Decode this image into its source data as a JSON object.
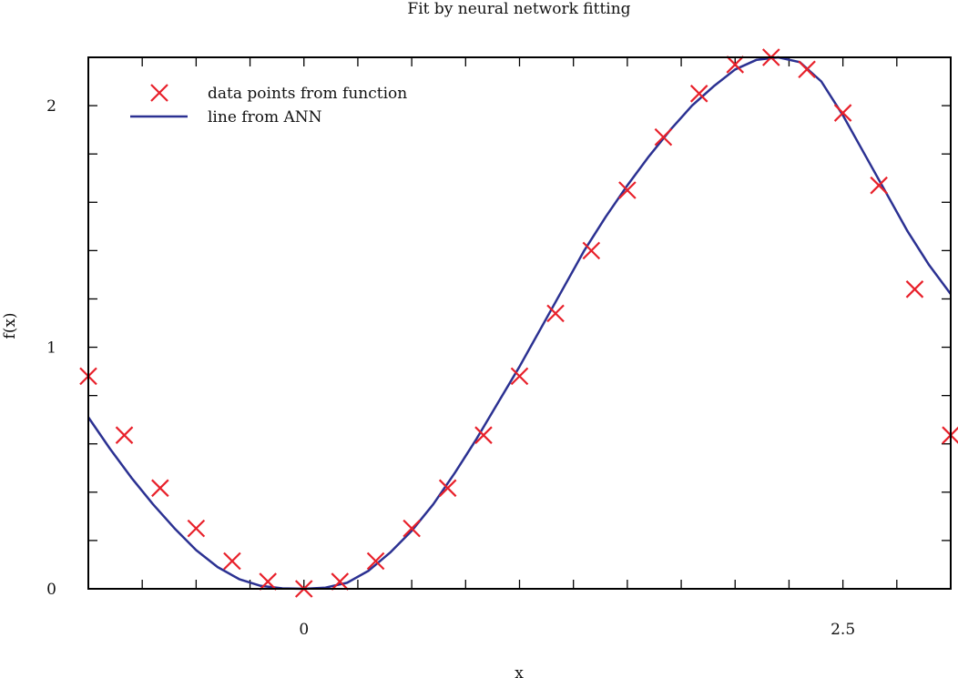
{
  "chart_data": {
    "type": "scatter",
    "title": "Fit by neural network fitting",
    "xlabel": "x",
    "ylabel": "f(x)",
    "xlim": [
      -1.0,
      3.0
    ],
    "ylim": [
      0,
      2.2
    ],
    "x_ticks": [
      0,
      2.5
    ],
    "x_tick_labels": [
      "0",
      "2.5"
    ],
    "y_ticks": [
      0,
      1,
      2
    ],
    "y_tick_labels": [
      "0",
      "1",
      "2"
    ],
    "grid": false,
    "legend_position": "top-left",
    "series": [
      {
        "name": "data points from function",
        "kind": "markers",
        "marker": "x",
        "color": "#e8202a",
        "points": [
          [
            -1.0,
            0.88
          ],
          [
            -0.833,
            0.636
          ],
          [
            -0.667,
            0.417
          ],
          [
            -0.5,
            0.25
          ],
          [
            -0.333,
            0.115
          ],
          [
            -0.167,
            0.03
          ],
          [
            0.0,
            0.0
          ],
          [
            0.167,
            0.03
          ],
          [
            0.333,
            0.115
          ],
          [
            0.5,
            0.25
          ],
          [
            0.667,
            0.417
          ],
          [
            0.833,
            0.636
          ],
          [
            1.0,
            0.88
          ],
          [
            1.167,
            1.14
          ],
          [
            1.333,
            1.4
          ],
          [
            1.5,
            1.65
          ],
          [
            1.667,
            1.87
          ],
          [
            1.833,
            2.05
          ],
          [
            2.0,
            2.17
          ],
          [
            2.167,
            2.2
          ],
          [
            2.333,
            2.15
          ],
          [
            2.5,
            1.97
          ],
          [
            2.667,
            1.67
          ],
          [
            2.833,
            1.24
          ],
          [
            3.0,
            0.636
          ]
        ]
      },
      {
        "name": "line from ANN",
        "kind": "line",
        "color": "#2b3192",
        "points": [
          [
            -1.0,
            0.71
          ],
          [
            -0.9,
            0.58
          ],
          [
            -0.8,
            0.46
          ],
          [
            -0.7,
            0.35
          ],
          [
            -0.6,
            0.25
          ],
          [
            -0.5,
            0.16
          ],
          [
            -0.4,
            0.09
          ],
          [
            -0.3,
            0.04
          ],
          [
            -0.2,
            0.012
          ],
          [
            -0.1,
            0.002
          ],
          [
            0.0,
            0.0
          ],
          [
            0.1,
            0.005
          ],
          [
            0.2,
            0.025
          ],
          [
            0.3,
            0.075
          ],
          [
            0.4,
            0.15
          ],
          [
            0.5,
            0.24
          ],
          [
            0.6,
            0.35
          ],
          [
            0.7,
            0.48
          ],
          [
            0.8,
            0.62
          ],
          [
            0.9,
            0.77
          ],
          [
            1.0,
            0.92
          ],
          [
            1.1,
            1.08
          ],
          [
            1.2,
            1.24
          ],
          [
            1.3,
            1.4
          ],
          [
            1.4,
            1.54
          ],
          [
            1.5,
            1.67
          ],
          [
            1.6,
            1.79
          ],
          [
            1.7,
            1.9
          ],
          [
            1.8,
            2.0
          ],
          [
            1.9,
            2.08
          ],
          [
            2.0,
            2.15
          ],
          [
            2.1,
            2.19
          ],
          [
            2.2,
            2.2
          ],
          [
            2.3,
            2.18
          ],
          [
            2.4,
            2.1
          ],
          [
            2.5,
            1.96
          ],
          [
            2.6,
            1.8
          ],
          [
            2.7,
            1.64
          ],
          [
            2.8,
            1.48
          ],
          [
            2.9,
            1.34
          ],
          [
            3.0,
            1.22
          ]
        ]
      }
    ]
  }
}
